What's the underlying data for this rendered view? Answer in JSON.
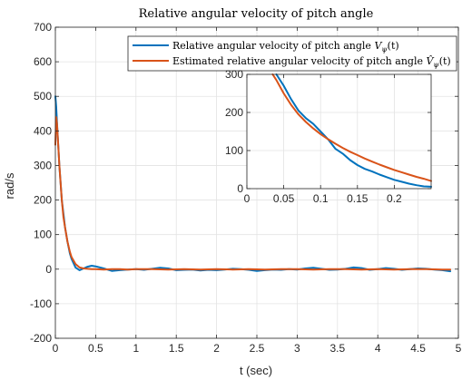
{
  "colors": {
    "series1": "#0072BD",
    "series2": "#D95319",
    "grid": "#e3e3e3",
    "axis": "#262626"
  },
  "chart_data": [
    {
      "type": "line",
      "title": "Relative angular velocity of pitch angle",
      "xlabel": "t (sec)",
      "ylabel": "rad/s",
      "xlim": [
        0,
        5
      ],
      "ylim": [
        -200,
        700
      ],
      "xticks": [
        0,
        0.5,
        1,
        1.5,
        2,
        2.5,
        3,
        3.5,
        4,
        4.5,
        5
      ],
      "xtick_labels": [
        "0",
        "0.5",
        "1",
        "1.5",
        "2",
        "2.5",
        "3",
        "3.5",
        "4",
        "4.5",
        "5"
      ],
      "yticks": [
        -200,
        -100,
        0,
        100,
        200,
        300,
        400,
        500,
        600,
        700
      ],
      "ytick_labels": [
        "-200",
        "-100",
        "0",
        "100",
        "200",
        "300",
        "400",
        "500",
        "600",
        "700"
      ],
      "grid": true,
      "legend_position": "top-right",
      "series": [
        {
          "name": "Relative angular velocity of pitch angle V_ψ(t)",
          "color": "#0072BD",
          "x": [
            0,
            0.01,
            0.03,
            0.05,
            0.08,
            0.1,
            0.12,
            0.15,
            0.18,
            0.2,
            0.25,
            0.3,
            0.35,
            0.4,
            0.45,
            0.5,
            0.6,
            0.7,
            0.8,
            0.9,
            1.0,
            1.1,
            1.2,
            1.3,
            1.4,
            1.5,
            1.6,
            1.7,
            1.8,
            1.9,
            2.0,
            2.1,
            2.2,
            2.3,
            2.4,
            2.5,
            2.6,
            2.7,
            2.8,
            2.9,
            3.0,
            3.1,
            3.2,
            3.3,
            3.4,
            3.5,
            3.6,
            3.7,
            3.8,
            3.9,
            4.0,
            4.1,
            4.2,
            4.3,
            4.4,
            4.5,
            4.6,
            4.7,
            4.8,
            4.9
          ],
          "y": [
            500,
            470,
            380,
            300,
            200,
            160,
            120,
            80,
            45,
            30,
            5,
            -3,
            2,
            7,
            10,
            8,
            2,
            -5,
            -3,
            -1,
            0,
            -2,
            1,
            4,
            2,
            -3,
            -2,
            -1,
            -4,
            -2,
            -3,
            -1,
            1,
            0,
            -2,
            -5,
            -3,
            -1,
            -2,
            0,
            -1,
            2,
            4,
            1,
            -2,
            -1,
            1,
            5,
            3,
            -2,
            0,
            3,
            1,
            -2,
            0,
            2,
            1,
            -1,
            -3,
            -6
          ]
        },
        {
          "name": "Estimated relative angular velocity of pitch angle V̂_ψ(t)",
          "color": "#D95319",
          "x": [
            0,
            0.01,
            0.02,
            0.03,
            0.05,
            0.08,
            0.1,
            0.12,
            0.15,
            0.18,
            0.2,
            0.25,
            0.3,
            0.35,
            0.4,
            0.45,
            0.5,
            0.6,
            0.7,
            0.8,
            0.9,
            1.0,
            1.2,
            1.4,
            1.6,
            1.8,
            2.0,
            2.2,
            2.4,
            2.6,
            2.8,
            3.0,
            3.2,
            3.4,
            3.6,
            3.8,
            4.0,
            4.2,
            4.4,
            4.6,
            4.8,
            4.9
          ],
          "y": [
            360,
            440,
            420,
            380,
            300,
            200,
            150,
            120,
            80,
            50,
            35,
            15,
            5,
            2,
            1,
            0,
            0,
            -1,
            0,
            0,
            -1,
            0,
            0,
            -1,
            0,
            -1,
            0,
            -1,
            0,
            -1,
            0,
            0,
            -1,
            0,
            0,
            -1,
            0,
            -1,
            0,
            0,
            -1,
            -1
          ]
        }
      ]
    },
    {
      "type": "line",
      "title": "",
      "xlabel": "",
      "ylabel": "",
      "xlim": [
        0,
        0.25
      ],
      "ylim": [
        0,
        300
      ],
      "xticks": [
        0,
        0.05,
        0.1,
        0.15,
        0.2
      ],
      "xtick_labels": [
        "0",
        "0.05",
        "0.1",
        "0.15",
        "0.2"
      ],
      "yticks": [
        0,
        100,
        200,
        300
      ],
      "ytick_labels": [
        "0",
        "100",
        "200",
        "300"
      ],
      "grid": true,
      "series": [
        {
          "color": "#0072BD",
          "x": [
            0.04,
            0.05,
            0.06,
            0.07,
            0.08,
            0.09,
            0.1,
            0.11,
            0.12,
            0.13,
            0.14,
            0.15,
            0.16,
            0.17,
            0.18,
            0.19,
            0.2,
            0.21,
            0.22,
            0.23,
            0.24,
            0.25
          ],
          "y": [
            300,
            270,
            235,
            205,
            185,
            170,
            150,
            130,
            105,
            92,
            75,
            62,
            52,
            45,
            37,
            30,
            23,
            18,
            13,
            9,
            6,
            5
          ]
        },
        {
          "color": "#D95319",
          "x": [
            0.035,
            0.04,
            0.05,
            0.06,
            0.07,
            0.08,
            0.09,
            0.1,
            0.11,
            0.12,
            0.13,
            0.14,
            0.15,
            0.16,
            0.17,
            0.18,
            0.19,
            0.2,
            0.21,
            0.22,
            0.23,
            0.24,
            0.25
          ],
          "y": [
            300,
            285,
            250,
            220,
            195,
            175,
            158,
            143,
            130,
            118,
            107,
            97,
            88,
            79,
            71,
            63,
            56,
            49,
            43,
            37,
            31,
            26,
            20
          ]
        }
      ]
    }
  ]
}
